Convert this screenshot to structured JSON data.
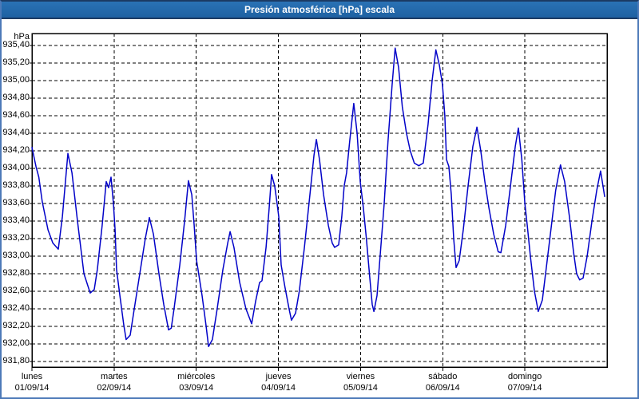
{
  "window": {
    "title": "Presión atmosférica [hPa] escala"
  },
  "axes": {
    "unit_label": "hPa",
    "y_ticks": [
      {
        "v": 935.4,
        "label": "935,40"
      },
      {
        "v": 935.2,
        "label": "935,20"
      },
      {
        "v": 935.0,
        "label": "935,00"
      },
      {
        "v": 934.8,
        "label": "934,80"
      },
      {
        "v": 934.6,
        "label": "934,60"
      },
      {
        "v": 934.4,
        "label": "934,40"
      },
      {
        "v": 934.2,
        "label": "934,20"
      },
      {
        "v": 934.0,
        "label": "934,00"
      },
      {
        "v": 933.8,
        "label": "933,80"
      },
      {
        "v": 933.6,
        "label": "933,60"
      },
      {
        "v": 933.4,
        "label": "933,40"
      },
      {
        "v": 933.2,
        "label": "933,20"
      },
      {
        "v": 933.0,
        "label": "933,00"
      },
      {
        "v": 932.8,
        "label": "932,80"
      },
      {
        "v": 932.6,
        "label": "932,60"
      },
      {
        "v": 932.4,
        "label": "932,40"
      },
      {
        "v": 932.2,
        "label": "932,20"
      },
      {
        "v": 932.0,
        "label": "932,00"
      },
      {
        "v": 931.8,
        "label": "931,80"
      }
    ],
    "x_ticks": [
      {
        "hour": 0,
        "day": "lunes",
        "date": "01/09/14"
      },
      {
        "hour": 24,
        "day": "martes",
        "date": "02/09/14"
      },
      {
        "hour": 48,
        "day": "miércoles",
        "date": "03/09/14"
      },
      {
        "hour": 72,
        "day": "jueves",
        "date": "04/09/14"
      },
      {
        "hour": 96,
        "day": "viernes",
        "date": "05/09/14"
      },
      {
        "hour": 120,
        "day": "sábado",
        "date": "06/09/14"
      },
      {
        "hour": 144,
        "day": "domingo",
        "date": "07/09/14"
      }
    ]
  },
  "colors": {
    "frame_blue": "#4d7ab8",
    "title_navy": "#1b3a64",
    "titlebar_blue": "#2268a8",
    "line_blue": "#0202c8",
    "grid_black": "#000000"
  },
  "chart_data": {
    "type": "line",
    "title": "Presión atmosférica [hPa] escala",
    "xlabel": "",
    "ylabel": "hPa",
    "x_unit": "hours since lunes 01/09/14 00:00",
    "xlim": [
      0,
      168
    ],
    "ylim": [
      931.74,
      935.54
    ],
    "y_tick_step": 0.2,
    "grid": "dashed",
    "legend": "none",
    "series": [
      {
        "name": "Presión atmosférica [hPa]",
        "color": "#0202c8",
        "points": [
          [
            0,
            934.24
          ],
          [
            1.2,
            934.02
          ],
          [
            2,
            933.9
          ],
          [
            3,
            933.62
          ],
          [
            4.7,
            933.3
          ],
          [
            6.1,
            933.15
          ],
          [
            7.7,
            933.08
          ],
          [
            8.9,
            933.45
          ],
          [
            10.5,
            934.17
          ],
          [
            11.7,
            933.95
          ],
          [
            13.3,
            933.4
          ],
          [
            15.2,
            932.8
          ],
          [
            17,
            932.58
          ],
          [
            18.2,
            932.62
          ],
          [
            19.1,
            932.85
          ],
          [
            20.5,
            933.35
          ],
          [
            21.7,
            933.85
          ],
          [
            22.4,
            933.78
          ],
          [
            23.1,
            933.9
          ],
          [
            23.8,
            933.6
          ],
          [
            24.3,
            933.3
          ],
          [
            24.7,
            932.85
          ],
          [
            25.7,
            932.55
          ],
          [
            26.8,
            932.22
          ],
          [
            27.5,
            932.05
          ],
          [
            28.7,
            932.1
          ],
          [
            29.9,
            932.4
          ],
          [
            31.5,
            932.8
          ],
          [
            33.1,
            933.2
          ],
          [
            34.3,
            933.44
          ],
          [
            35.5,
            933.25
          ],
          [
            37.1,
            932.8
          ],
          [
            38.5,
            932.45
          ],
          [
            39.9,
            932.16
          ],
          [
            40.7,
            932.18
          ],
          [
            41.5,
            932.4
          ],
          [
            43.2,
            932.9
          ],
          [
            44.6,
            933.4
          ],
          [
            45.7,
            933.86
          ],
          [
            46.7,
            933.7
          ],
          [
            47.4,
            933.35
          ],
          [
            48.1,
            932.95
          ],
          [
            48.8,
            932.78
          ],
          [
            49.7,
            932.55
          ],
          [
            50.9,
            932.2
          ],
          [
            51.6,
            931.97
          ],
          [
            52.7,
            932.05
          ],
          [
            54.1,
            932.4
          ],
          [
            55.8,
            932.85
          ],
          [
            57.2,
            933.15
          ],
          [
            57.9,
            933.28
          ],
          [
            59,
            933.1
          ],
          [
            60.7,
            932.7
          ],
          [
            62.5,
            932.4
          ],
          [
            64.2,
            932.23
          ],
          [
            65.3,
            932.48
          ],
          [
            66.5,
            932.7
          ],
          [
            67.2,
            932.72
          ],
          [
            68.4,
            933.1
          ],
          [
            69.3,
            933.55
          ],
          [
            70,
            933.93
          ],
          [
            70.9,
            933.8
          ],
          [
            71.6,
            933.6
          ],
          [
            72.1,
            933.45
          ],
          [
            72.8,
            932.9
          ],
          [
            73.9,
            932.65
          ],
          [
            75.1,
            932.4
          ],
          [
            75.8,
            932.27
          ],
          [
            77,
            932.35
          ],
          [
            78.1,
            932.6
          ],
          [
            79.6,
            933.1
          ],
          [
            81.2,
            933.7
          ],
          [
            82.4,
            934.15
          ],
          [
            83.1,
            934.33
          ],
          [
            84,
            934.1
          ],
          [
            85.2,
            933.7
          ],
          [
            86.6,
            933.35
          ],
          [
            87.7,
            933.15
          ],
          [
            88.4,
            933.1
          ],
          [
            89.6,
            933.13
          ],
          [
            90.5,
            933.45
          ],
          [
            91.2,
            933.8
          ],
          [
            91.9,
            933.95
          ],
          [
            92.8,
            934.3
          ],
          [
            94,
            934.74
          ],
          [
            95,
            934.4
          ],
          [
            95.9,
            933.85
          ],
          [
            96.8,
            933.55
          ],
          [
            97.7,
            933.2
          ],
          [
            98.7,
            932.75
          ],
          [
            99.4,
            932.45
          ],
          [
            99.9,
            932.37
          ],
          [
            100.8,
            932.55
          ],
          [
            101.7,
            933.0
          ],
          [
            102.9,
            933.6
          ],
          [
            104,
            934.3
          ],
          [
            105.2,
            934.95
          ],
          [
            106.1,
            935.37
          ],
          [
            107.1,
            935.15
          ],
          [
            108.2,
            934.7
          ],
          [
            109.4,
            934.4
          ],
          [
            110.5,
            934.2
          ],
          [
            111.7,
            934.06
          ],
          [
            113,
            934.03
          ],
          [
            114.3,
            934.06
          ],
          [
            115.7,
            934.5
          ],
          [
            116.9,
            935.0
          ],
          [
            118,
            935.35
          ],
          [
            119,
            935.18
          ],
          [
            119.9,
            934.96
          ],
          [
            120.6,
            934.6
          ],
          [
            121.1,
            934.1
          ],
          [
            121.8,
            934.02
          ],
          [
            122.5,
            933.7
          ],
          [
            123.2,
            933.2
          ],
          [
            123.9,
            932.87
          ],
          [
            124.8,
            932.95
          ],
          [
            126,
            933.3
          ],
          [
            127.4,
            933.8
          ],
          [
            128.8,
            934.25
          ],
          [
            130,
            934.47
          ],
          [
            131.1,
            934.2
          ],
          [
            132.3,
            933.85
          ],
          [
            133.5,
            933.55
          ],
          [
            134.9,
            933.25
          ],
          [
            136.2,
            933.05
          ],
          [
            137,
            933.04
          ],
          [
            138.4,
            933.35
          ],
          [
            139.8,
            933.8
          ],
          [
            141.2,
            934.25
          ],
          [
            142.1,
            934.46
          ],
          [
            143.1,
            934.1
          ],
          [
            144,
            933.6
          ],
          [
            144.7,
            933.35
          ],
          [
            145.6,
            933.0
          ],
          [
            146.8,
            932.6
          ],
          [
            147.9,
            932.37
          ],
          [
            149.1,
            932.5
          ],
          [
            150.2,
            932.85
          ],
          [
            151.6,
            933.3
          ],
          [
            153,
            933.75
          ],
          [
            154.4,
            934.04
          ],
          [
            155.6,
            933.85
          ],
          [
            157,
            933.45
          ],
          [
            158.2,
            933.05
          ],
          [
            159.1,
            932.8
          ],
          [
            160,
            932.73
          ],
          [
            161,
            932.75
          ],
          [
            162.2,
            933.0
          ],
          [
            163.6,
            933.4
          ],
          [
            165,
            933.75
          ],
          [
            166.1,
            933.97
          ],
          [
            166.8,
            933.8
          ],
          [
            167.3,
            933.68
          ]
        ]
      }
    ]
  }
}
